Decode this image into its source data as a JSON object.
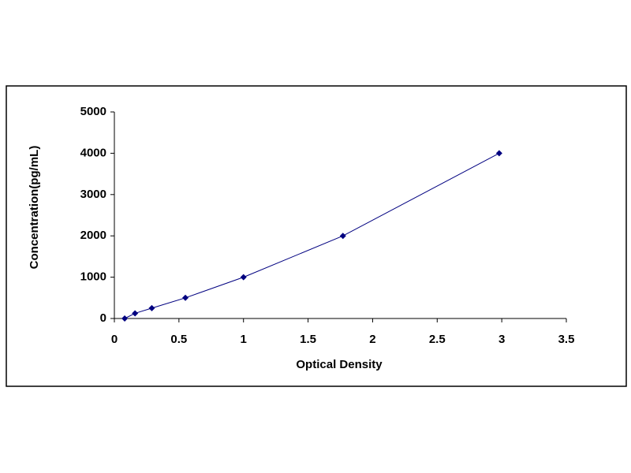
{
  "chart_data": {
    "type": "scatter",
    "x_label": "Optical Density",
    "y_label": "Concentration(pg/mL)",
    "series": [
      {
        "name": "Standard",
        "color": "#000080",
        "x": [
          0.08,
          0.16,
          0.29,
          0.55,
          1.0,
          1.77,
          2.98
        ],
        "values": [
          0,
          125,
          250,
          500,
          1000,
          2000,
          4000
        ]
      }
    ],
    "line": true,
    "xlim": [
      0,
      3.5
    ],
    "xticks": [
      0,
      0.5,
      1,
      1.5,
      2,
      2.5,
      3,
      3.5
    ],
    "ylim": [
      0,
      5000
    ],
    "yticks": [
      0,
      1000,
      2000,
      3000,
      4000,
      5000
    ],
    "grid": false
  }
}
